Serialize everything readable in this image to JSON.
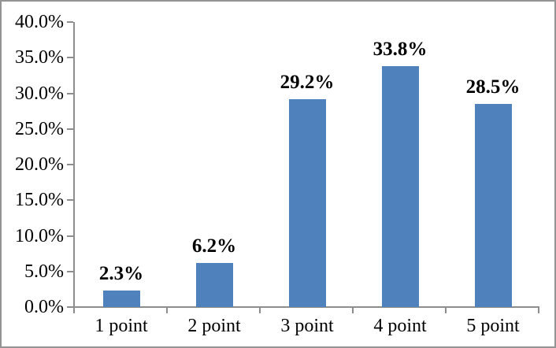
{
  "chart_data": {
    "type": "bar",
    "title": "",
    "xlabel": "",
    "ylabel": "",
    "categories": [
      "1 point",
      "2 point",
      "3 point",
      "4 point",
      "5 point"
    ],
    "values": [
      2.3,
      6.2,
      29.2,
      33.8,
      28.5
    ],
    "data_labels": [
      "2.3%",
      "6.2%",
      "29.2%",
      "33.8%",
      "28.5%"
    ],
    "y_ticks": [
      "40.0%",
      "35.0%",
      "30.0%",
      "25.0%",
      "20.0%",
      "15.0%",
      "10.0%",
      "5.0%",
      "0.0%"
    ],
    "y_tick_values": [
      40,
      35,
      30,
      25,
      20,
      15,
      10,
      5,
      0
    ],
    "ylim": [
      0,
      40
    ],
    "grid": false,
    "legend": "none",
    "bar_color": "#4F81BD",
    "axis_color": "#8E8E8E",
    "text_color": "#000000",
    "frame_border_color": "#949494"
  }
}
